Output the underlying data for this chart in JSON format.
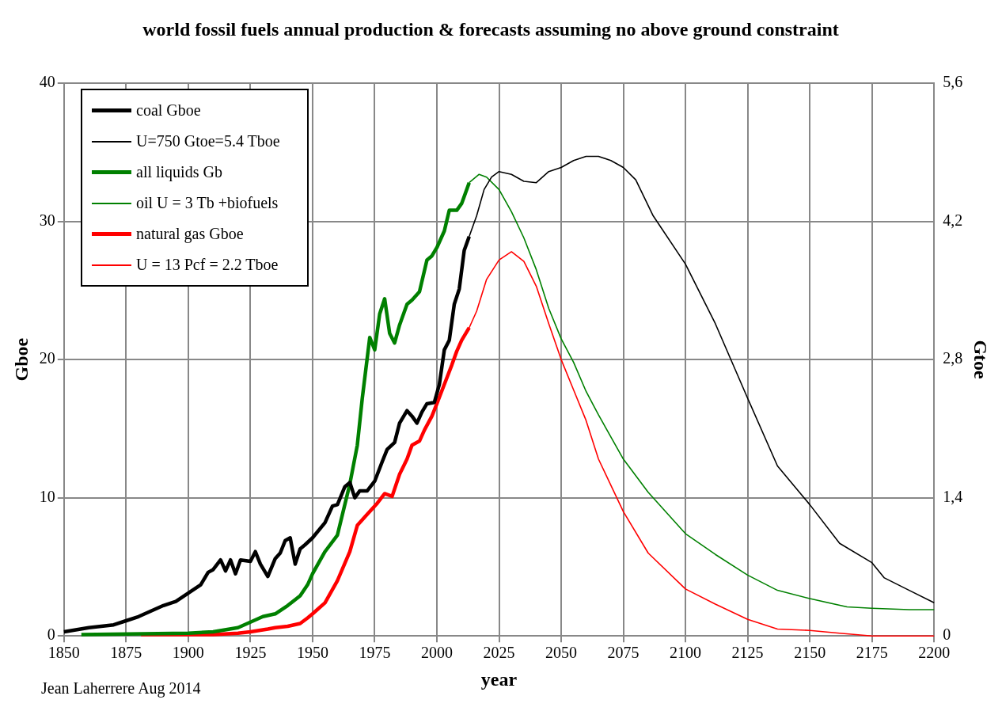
{
  "chart_data": {
    "type": "line",
    "title": "world fossil fuels annual production & forecasts assuming no above ground constraint",
    "xlabel": "year",
    "ylabel": "Gboe",
    "y2label": "Gtoe",
    "xlim": [
      1850,
      2200
    ],
    "xticks": [
      1850,
      1875,
      1900,
      1925,
      1950,
      1975,
      2000,
      2025,
      2050,
      2075,
      2100,
      2125,
      2150,
      2175,
      2200
    ],
    "ylim": [
      0,
      40
    ],
    "yticks": [
      0,
      10,
      20,
      30,
      40
    ],
    "y2lim": [
      0,
      5.6
    ],
    "y2ticks": [
      0,
      {
        "value": 1.4,
        "label": "1,4"
      },
      {
        "value": 2.8,
        "label": "2,8"
      },
      {
        "value": 4.2,
        "label": "4,2"
      },
      {
        "value": 5.6,
        "label": "5,6"
      }
    ],
    "grid": true,
    "legend": "top left",
    "marker": "none",
    "line_style": "solid",
    "annotations": [
      "Jean Laherrere Aug 2014"
    ],
    "series": [
      {
        "name": "coal Gboe",
        "color": "#000000",
        "x": [
          1850,
          1860,
          1870,
          1875,
          1880,
          1885,
          1890,
          1895,
          1900,
          1905,
          1908,
          1910,
          1913,
          1915,
          1917,
          1919,
          1921,
          1925,
          1927,
          1929,
          1932,
          1935,
          1937,
          1939,
          1941,
          1943,
          1945,
          1947,
          1950,
          1955,
          1958,
          1960,
          1963,
          1965,
          1967,
          1969,
          1972,
          1975,
          1978,
          1980,
          1983,
          1985,
          1988,
          1990,
          1992,
          1994,
          1996,
          1999,
          2001,
          2003,
          2005,
          2007,
          2009,
          2011,
          2013
        ],
        "values": [
          0.3,
          0.6,
          0.8,
          1.1,
          1.4,
          1.8,
          2.2,
          2.5,
          3.1,
          3.7,
          4.6,
          4.8,
          5.5,
          4.7,
          5.5,
          4.5,
          5.5,
          5.4,
          6.1,
          5.2,
          4.3,
          5.6,
          6.0,
          6.9,
          7.1,
          5.2,
          6.3,
          6.6,
          7.1,
          8.2,
          9.4,
          9.5,
          10.8,
          11.1,
          10.0,
          10.5,
          10.5,
          11.2,
          12.6,
          13.5,
          14.0,
          15.4,
          16.3,
          15.9,
          15.4,
          16.2,
          16.8,
          16.9,
          18.2,
          20.7,
          21.4,
          24.0,
          25.1,
          27.9,
          28.9
        ]
      },
      {
        "name": "U=750 Gtoe=5.4 Tboe",
        "color": "#000000",
        "x": [
          2013,
          2016,
          2019,
          2022,
          2025,
          2030,
          2035,
          2040,
          2045,
          2050,
          2055,
          2060,
          2065,
          2070,
          2075,
          2080,
          2087,
          2100,
          2112,
          2125,
          2137,
          2150,
          2162,
          2175,
          2180,
          2190,
          2200
        ],
        "values": [
          28.9,
          30.4,
          32.3,
          33.2,
          33.6,
          33.4,
          32.9,
          32.8,
          33.6,
          33.9,
          34.4,
          34.7,
          34.7,
          34.4,
          33.9,
          33.0,
          30.4,
          26.9,
          22.6,
          17.2,
          12.3,
          9.5,
          6.7,
          5.3,
          4.2,
          3.3,
          2.4
        ]
      },
      {
        "name": "all liquids Gb",
        "color": "#008000",
        "x": [
          1857,
          1900,
          1910,
          1920,
          1925,
          1930,
          1935,
          1940,
          1945,
          1948,
          1950,
          1955,
          1960,
          1965,
          1968,
          1970,
          1973,
          1975,
          1977,
          1979,
          1981,
          1983,
          1985,
          1988,
          1990,
          1993,
          1996,
          1998,
          2000,
          2003,
          2005,
          2008,
          2010,
          2013
        ],
        "values": [
          0.1,
          0.2,
          0.3,
          0.6,
          1.0,
          1.4,
          1.6,
          2.2,
          2.9,
          3.7,
          4.5,
          6.1,
          7.3,
          11.0,
          13.8,
          17.2,
          21.6,
          20.7,
          23.3,
          24.4,
          21.9,
          21.2,
          22.5,
          24.0,
          24.3,
          24.9,
          27.2,
          27.5,
          28.1,
          29.3,
          30.8,
          30.8,
          31.3,
          32.8
        ]
      },
      {
        "name": "oil U = 3 Tb +biofuels",
        "color": "#008000",
        "x": [
          2013,
          2017,
          2020,
          2025,
          2030,
          2035,
          2040,
          2045,
          2050,
          2055,
          2060,
          2065,
          2075,
          2085,
          2100,
          2112,
          2125,
          2137,
          2150,
          2165,
          2175,
          2190,
          2200
        ],
        "values": [
          32.8,
          33.4,
          33.2,
          32.3,
          30.7,
          28.8,
          26.5,
          23.7,
          21.5,
          19.8,
          17.7,
          16.0,
          12.8,
          10.4,
          7.4,
          5.9,
          4.4,
          3.3,
          2.7,
          2.1,
          2.0,
          1.9,
          1.9
        ]
      },
      {
        "name": "natural gas Gboe",
        "color": "#ff0000",
        "x": [
          1881,
          1900,
          1910,
          1920,
          1925,
          1932,
          1935,
          1940,
          1945,
          1948,
          1950,
          1955,
          1960,
          1965,
          1968,
          1972,
          1976,
          1979,
          1982,
          1985,
          1988,
          1990,
          1993,
          1995,
          1998,
          2000,
          2003,
          2006,
          2008,
          2010,
          2013
        ],
        "values": [
          0.1,
          0.1,
          0.1,
          0.2,
          0.3,
          0.5,
          0.6,
          0.7,
          0.9,
          1.3,
          1.6,
          2.4,
          4.0,
          6.1,
          8.0,
          8.8,
          9.6,
          10.3,
          10.1,
          11.7,
          12.8,
          13.8,
          14.1,
          14.9,
          15.9,
          16.8,
          18.2,
          19.6,
          20.6,
          21.4,
          22.3
        ]
      },
      {
        "name": "U = 13 Pcf = 2.2 Tboe",
        "color": "#ff0000",
        "x": [
          2013,
          2016,
          2020,
          2025,
          2030,
          2035,
          2040,
          2045,
          2050,
          2055,
          2060,
          2065,
          2075,
          2085,
          2100,
          2112,
          2125,
          2137,
          2150,
          2162,
          2175,
          2200
        ],
        "values": [
          22.3,
          23.5,
          25.8,
          27.2,
          27.8,
          27.1,
          25.3,
          22.6,
          20.0,
          17.8,
          15.6,
          12.8,
          9.0,
          6.0,
          3.4,
          2.3,
          1.2,
          0.5,
          0.4,
          0.2,
          0,
          0
        ]
      }
    ]
  }
}
